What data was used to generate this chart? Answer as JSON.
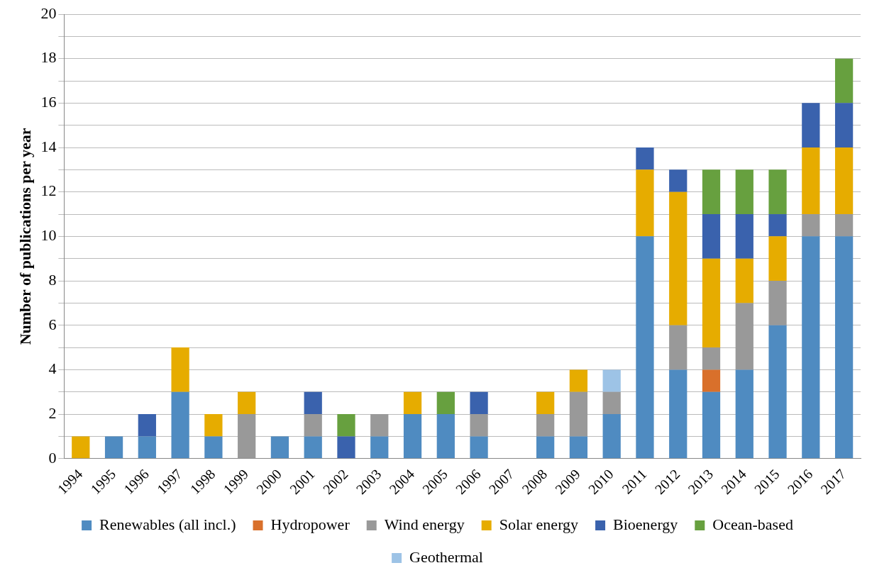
{
  "chart_data": {
    "type": "bar",
    "stacked": true,
    "ylabel": "Number of publications per year",
    "categories": [
      "1994",
      "1995",
      "1996",
      "1997",
      "1998",
      "1999",
      "2000",
      "2001",
      "2002",
      "2003",
      "2004",
      "2005",
      "2006",
      "2007",
      "2008",
      "2009",
      "2010",
      "2011",
      "2012",
      "2013",
      "2014",
      "2015",
      "2016",
      "2017"
    ],
    "series": [
      {
        "name": "Renewables (all incl.)",
        "color": "#4f8bc1",
        "values": [
          0,
          1,
          1,
          3,
          1,
          0,
          1,
          1,
          0,
          1,
          2,
          2,
          1,
          0,
          1,
          1,
          2,
          10,
          4,
          3,
          4,
          6,
          10,
          10
        ]
      },
      {
        "name": "Hydropower",
        "color": "#d9702b",
        "values": [
          0,
          0,
          0,
          0,
          0,
          0,
          0,
          0,
          0,
          0,
          0,
          0,
          0,
          0,
          0,
          0,
          0,
          0,
          0,
          1,
          0,
          0,
          0,
          0
        ]
      },
      {
        "name": "Wind energy",
        "color": "#999999",
        "values": [
          0,
          0,
          0,
          0,
          0,
          2,
          0,
          1,
          0,
          1,
          0,
          0,
          1,
          0,
          1,
          2,
          1,
          0,
          2,
          1,
          3,
          2,
          1,
          1
        ]
      },
      {
        "name": "Solar energy",
        "color": "#e6ac00",
        "values": [
          1,
          0,
          0,
          2,
          1,
          1,
          0,
          0,
          0,
          0,
          1,
          0,
          0,
          0,
          1,
          1,
          0,
          3,
          6,
          4,
          2,
          2,
          3,
          3
        ]
      },
      {
        "name": "Bioenergy",
        "color": "#3a62ad",
        "values": [
          0,
          0,
          1,
          0,
          0,
          0,
          0,
          1,
          1,
          0,
          0,
          0,
          1,
          0,
          0,
          0,
          0,
          1,
          1,
          2,
          2,
          1,
          2,
          2
        ]
      },
      {
        "name": "Ocean-based",
        "color": "#67a03f",
        "values": [
          0,
          0,
          0,
          0,
          0,
          0,
          0,
          0,
          1,
          0,
          0,
          1,
          0,
          0,
          0,
          0,
          0,
          0,
          0,
          2,
          2,
          2,
          0,
          2
        ]
      },
      {
        "name": "Geothermal",
        "color": "#9dc3e6",
        "values": [
          0,
          0,
          0,
          0,
          0,
          0,
          0,
          0,
          0,
          0,
          0,
          0,
          0,
          0,
          0,
          0,
          1,
          0,
          0,
          0,
          0,
          0,
          0,
          0
        ]
      }
    ],
    "ylim": [
      0,
      20
    ],
    "yticks": [
      0,
      {
        "value": 1,
        "label": null
      },
      2,
      {
        "value": 3,
        "label": null
      },
      4,
      {
        "value": 5,
        "label": null
      },
      6,
      {
        "value": 7,
        "label": null
      },
      8,
      {
        "value": 9,
        "label": null
      },
      10,
      {
        "value": 11,
        "label": null
      },
      12,
      {
        "value": 13,
        "label": null
      },
      14,
      {
        "value": 15,
        "label": null
      },
      16,
      {
        "value": 17,
        "label": null
      },
      18,
      {
        "value": 19,
        "label": null
      },
      20
    ],
    "grid": "y",
    "legend": "bottom"
  }
}
